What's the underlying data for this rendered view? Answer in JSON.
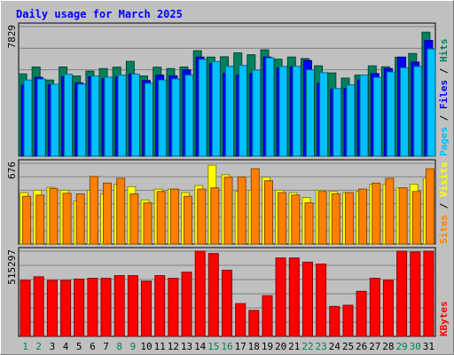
{
  "chart_data": [
    {
      "type": "bar",
      "title": "Daily usage for March 2025",
      "x": [
        "1",
        "2",
        "3",
        "4",
        "5",
        "6",
        "7",
        "8",
        "9",
        "10",
        "11",
        "12",
        "13",
        "14",
        "15",
        "16",
        "17",
        "18",
        "19",
        "20",
        "21",
        "22",
        "23",
        "24",
        "25",
        "26",
        "27",
        "28",
        "29",
        "30",
        "31"
      ],
      "weekend_days": [
        "1",
        "2",
        "8",
        "9",
        "15",
        "16",
        "22",
        "23",
        "29",
        "30"
      ],
      "ytop_label": "7829",
      "ylabel_parts": [
        "Pages",
        "Files",
        "Hits"
      ],
      "ylim": [
        0,
        7829
      ],
      "series": [
        {
          "name": "Hits",
          "color": "#00805c",
          "values": [
            4970,
            5390,
            4600,
            5390,
            4850,
            5140,
            5290,
            5380,
            5730,
            4850,
            5380,
            5290,
            5390,
            6370,
            5990,
            6010,
            6240,
            6130,
            6430,
            5860,
            5990,
            5900,
            5460,
            5030,
            4720,
            4900,
            5460,
            5400,
            5980,
            6210,
            7490
          ]
        },
        {
          "name": "Files",
          "color": "#0000ff",
          "values": [
            4300,
            4760,
            4320,
            4800,
            4430,
            4800,
            4700,
            4800,
            4970,
            4570,
            4900,
            4860,
            5210,
            5990,
            5600,
            5000,
            4900,
            5000,
            5990,
            5330,
            5400,
            5780,
            4400,
            4050,
            4100,
            4600,
            4990,
            5300,
            5990,
            5690,
            7000
          ]
        },
        {
          "name": "Pages",
          "color": "#00c0ff",
          "values": [
            4600,
            4660,
            4350,
            4950,
            4350,
            4850,
            4780,
            4900,
            4960,
            4400,
            4600,
            4670,
            4900,
            5850,
            5720,
            5430,
            5480,
            5200,
            5940,
            5420,
            5430,
            5220,
            5050,
            4090,
            4310,
            4900,
            4760,
            5090,
            5340,
            5420,
            6480
          ]
        }
      ]
    },
    {
      "type": "bar",
      "ytop_label": "676",
      "ylabel_parts": [
        "Sites",
        "Visits"
      ],
      "ylim": [
        0,
        676
      ],
      "series": [
        {
          "name": "Visits",
          "color": "#ffff00",
          "values": [
            430,
            450,
            475,
            450,
            360,
            450,
            420,
            500,
            480,
            370,
            460,
            460,
            430,
            490,
            660,
            580,
            440,
            450,
            560,
            450,
            430,
            390,
            450,
            440,
            430,
            440,
            500,
            500,
            470,
            500,
            550
          ]
        },
        {
          "name": "Sites",
          "color": "#ff8000",
          "values": [
            400,
            410,
            465,
            425,
            420,
            565,
            510,
            550,
            420,
            345,
            440,
            460,
            400,
            460,
            470,
            560,
            560,
            630,
            530,
            430,
            410,
            345,
            440,
            420,
            430,
            460,
            510,
            550,
            470,
            440,
            630
          ]
        }
      ]
    },
    {
      "type": "bar",
      "ytop_label": "515297",
      "ylabel_parts": [
        "KBytes"
      ],
      "ylim": [
        0,
        515297
      ],
      "series": [
        {
          "name": "KBytes",
          "color": "#ff0000",
          "values": [
            338000,
            360000,
            338000,
            338000,
            346000,
            351000,
            351000,
            367000,
            367000,
            334000,
            367000,
            351000,
            388000,
            515000,
            501000,
            400000,
            198000,
            157000,
            246000,
            474000,
            474000,
            449000,
            437000,
            181000,
            188000,
            272000,
            351000,
            339000,
            515000,
            510000,
            515000
          ]
        }
      ]
    }
  ]
}
